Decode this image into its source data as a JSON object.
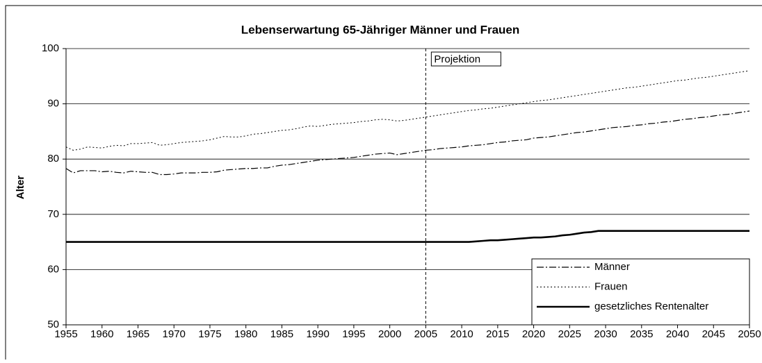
{
  "chart_data": {
    "type": "line",
    "title": "Lebenserwartung 65-Jähriger Männer und Frauen",
    "y_label": "Alter",
    "annotation": "Projektion",
    "projection_start": 2005,
    "x": [
      1955,
      1956,
      1957,
      1958,
      1959,
      1960,
      1961,
      1962,
      1963,
      1964,
      1965,
      1966,
      1967,
      1968,
      1969,
      1970,
      1971,
      1972,
      1973,
      1974,
      1975,
      1976,
      1977,
      1978,
      1979,
      1980,
      1981,
      1982,
      1983,
      1984,
      1985,
      1986,
      1987,
      1988,
      1989,
      1990,
      1991,
      1992,
      1993,
      1994,
      1995,
      1996,
      1997,
      1998,
      1999,
      2000,
      2001,
      2002,
      2003,
      2004,
      2005,
      2006,
      2007,
      2008,
      2009,
      2010,
      2011,
      2012,
      2013,
      2014,
      2015,
      2016,
      2017,
      2018,
      2019,
      2020,
      2021,
      2022,
      2023,
      2024,
      2025,
      2026,
      2027,
      2028,
      2029,
      2030,
      2031,
      2032,
      2033,
      2034,
      2035,
      2036,
      2037,
      2038,
      2039,
      2040,
      2041,
      2042,
      2043,
      2044,
      2045,
      2046,
      2047,
      2048,
      2049,
      2050
    ],
    "series": [
      {
        "name": "Männer",
        "color": "#000000",
        "dash": "10 3 2 3",
        "width": 1.2,
        "values": [
          78.3,
          77.5,
          77.9,
          77.9,
          77.9,
          77.7,
          77.8,
          77.6,
          77.5,
          77.8,
          77.7,
          77.6,
          77.6,
          77.2,
          77.2,
          77.3,
          77.5,
          77.5,
          77.5,
          77.6,
          77.6,
          77.7,
          78.0,
          78.1,
          78.2,
          78.3,
          78.3,
          78.4,
          78.4,
          78.7,
          78.9,
          79.0,
          79.2,
          79.4,
          79.6,
          79.8,
          79.9,
          80.0,
          80.1,
          80.2,
          80.3,
          80.5,
          80.7,
          80.9,
          81.0,
          81.1,
          80.8,
          81.0,
          81.2,
          81.4,
          81.6,
          81.7,
          81.9,
          82.0,
          82.1,
          82.2,
          82.4,
          82.5,
          82.6,
          82.8,
          83.0,
          83.1,
          83.3,
          83.4,
          83.5,
          83.8,
          83.9,
          84.0,
          84.2,
          84.4,
          84.6,
          84.8,
          84.9,
          85.1,
          85.3,
          85.5,
          85.7,
          85.8,
          85.9,
          86.1,
          86.2,
          86.4,
          86.5,
          86.7,
          86.8,
          87.0,
          87.2,
          87.3,
          87.5,
          87.6,
          87.8,
          88.0,
          88.1,
          88.3,
          88.5,
          88.7
        ]
      },
      {
        "name": "Frauen",
        "color": "#000000",
        "dash": "2 3",
        "width": 1,
        "values": [
          82.2,
          81.6,
          81.8,
          82.2,
          82.1,
          82.0,
          82.3,
          82.5,
          82.4,
          82.8,
          82.8,
          82.9,
          83.0,
          82.5,
          82.6,
          82.8,
          83.0,
          83.1,
          83.2,
          83.3,
          83.5,
          83.8,
          84.1,
          84.0,
          84.0,
          84.2,
          84.5,
          84.6,
          84.8,
          85.0,
          85.2,
          85.3,
          85.5,
          85.8,
          86.0,
          85.9,
          86.1,
          86.3,
          86.4,
          86.5,
          86.6,
          86.8,
          86.9,
          87.1,
          87.2,
          87.1,
          86.9,
          87.0,
          87.2,
          87.4,
          87.6,
          87.8,
          88.0,
          88.2,
          88.4,
          88.6,
          88.8,
          88.9,
          89.1,
          89.2,
          89.4,
          89.6,
          89.8,
          90.0,
          90.2,
          90.4,
          90.6,
          90.7,
          90.9,
          91.1,
          91.3,
          91.5,
          91.7,
          91.9,
          92.1,
          92.3,
          92.5,
          92.7,
          92.9,
          93.0,
          93.2,
          93.4,
          93.6,
          93.8,
          94.0,
          94.2,
          94.3,
          94.5,
          94.7,
          94.8,
          95.0,
          95.2,
          95.4,
          95.6,
          95.8,
          96.0
        ]
      },
      {
        "name": "gesetzliches Rentenalter",
        "color": "#000000",
        "dash": "none",
        "width": 2.6,
        "values": [
          65,
          65,
          65,
          65,
          65,
          65,
          65,
          65,
          65,
          65,
          65,
          65,
          65,
          65,
          65,
          65,
          65,
          65,
          65,
          65,
          65,
          65,
          65,
          65,
          65,
          65,
          65,
          65,
          65,
          65,
          65,
          65,
          65,
          65,
          65,
          65,
          65,
          65,
          65,
          65,
          65,
          65,
          65,
          65,
          65,
          65,
          65,
          65,
          65,
          65,
          65,
          65,
          65,
          65,
          65,
          65,
          65,
          65.1,
          65.2,
          65.3,
          65.3,
          65.4,
          65.5,
          65.6,
          65.7,
          65.8,
          65.8,
          65.9,
          66.0,
          66.2,
          66.3,
          66.5,
          66.7,
          66.8,
          67,
          67,
          67,
          67,
          67,
          67,
          67,
          67,
          67,
          67,
          67,
          67,
          67,
          67,
          67,
          67,
          67,
          67,
          67,
          67,
          67,
          67
        ]
      }
    ],
    "xlim": [
      1955,
      2050
    ],
    "xticks": [
      1955,
      1960,
      1965,
      1970,
      1975,
      1980,
      1985,
      1990,
      1995,
      2000,
      2005,
      2010,
      2015,
      2020,
      2025,
      2030,
      2035,
      2040,
      2045,
      2050
    ],
    "ylim": [
      50,
      100
    ],
    "yticks": [
      50,
      60,
      70,
      80,
      90,
      100
    ],
    "grid": true,
    "legend": "bottom-right"
  }
}
